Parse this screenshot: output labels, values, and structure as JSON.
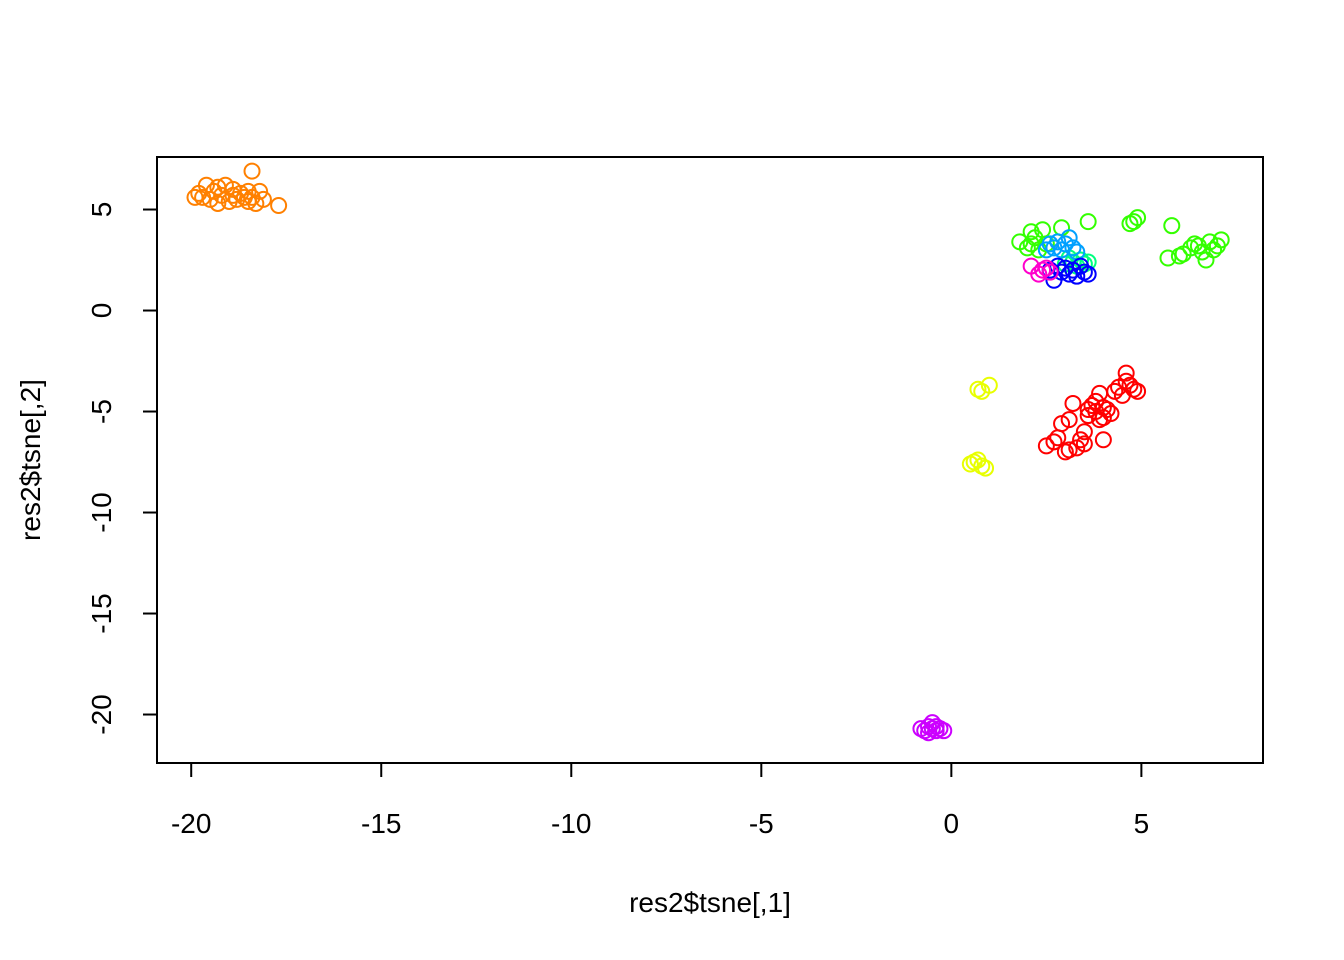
{
  "chart_data": {
    "type": "scatter",
    "title": "",
    "xlabel": "res2$tsne[,1]",
    "ylabel": "res2$tsne[,2]",
    "xlim": [
      -20.9,
      8.2
    ],
    "ylim": [
      -22.4,
      7.6
    ],
    "xticks": [
      -20,
      -15,
      -10,
      -5,
      0,
      5
    ],
    "yticks": [
      -20,
      -15,
      -10,
      -5,
      0,
      5
    ],
    "grid": false,
    "legend": "none",
    "marker": "open-circle",
    "series": [
      {
        "color": "#FF8000",
        "points": [
          [
            -19.9,
            5.6
          ],
          [
            -19.8,
            5.8
          ],
          [
            -19.7,
            5.6
          ],
          [
            -19.6,
            6.2
          ],
          [
            -19.5,
            5.5
          ],
          [
            -19.4,
            5.9
          ],
          [
            -19.3,
            6.1
          ],
          [
            -19.3,
            5.3
          ],
          [
            -19.2,
            5.7
          ],
          [
            -19.1,
            6.2
          ],
          [
            -19.0,
            5.4
          ],
          [
            -18.9,
            6.0
          ],
          [
            -18.9,
            5.7
          ],
          [
            -18.8,
            5.5
          ],
          [
            -18.7,
            5.8
          ],
          [
            -18.6,
            5.6
          ],
          [
            -18.5,
            5.9
          ],
          [
            -18.5,
            5.4
          ],
          [
            -18.4,
            6.9
          ],
          [
            -18.4,
            5.6
          ],
          [
            -18.3,
            5.3
          ],
          [
            -18.2,
            5.9
          ],
          [
            -18.1,
            5.5
          ],
          [
            -17.7,
            5.2
          ]
        ]
      },
      {
        "color": "#FF0000",
        "points": [
          [
            2.5,
            -6.7
          ],
          [
            2.7,
            -6.5
          ],
          [
            2.8,
            -6.3
          ],
          [
            2.9,
            -5.6
          ],
          [
            3.0,
            -7.0
          ],
          [
            3.1,
            -6.9
          ],
          [
            3.1,
            -5.4
          ],
          [
            3.2,
            -4.6
          ],
          [
            3.3,
            -6.8
          ],
          [
            3.4,
            -6.4
          ],
          [
            3.5,
            -6.6
          ],
          [
            3.5,
            -6.0
          ],
          [
            3.6,
            -5.2
          ],
          [
            3.6,
            -4.9
          ],
          [
            3.7,
            -4.7
          ],
          [
            3.8,
            -4.5
          ],
          [
            3.8,
            -5.0
          ],
          [
            3.9,
            -5.4
          ],
          [
            3.9,
            -4.1
          ],
          [
            4.0,
            -4.8
          ],
          [
            4.0,
            -5.3
          ],
          [
            4.0,
            -6.4
          ],
          [
            4.1,
            -4.9
          ],
          [
            4.2,
            -5.1
          ],
          [
            4.3,
            -4.0
          ],
          [
            4.4,
            -3.8
          ],
          [
            4.5,
            -4.2
          ],
          [
            4.6,
            -3.5
          ],
          [
            4.6,
            -3.1
          ],
          [
            4.7,
            -3.7
          ],
          [
            4.8,
            -3.9
          ],
          [
            4.9,
            -4.0
          ]
        ]
      },
      {
        "color": "#E8FF00",
        "points": [
          [
            0.7,
            -3.9
          ],
          [
            0.8,
            -4.0
          ],
          [
            1.0,
            -3.7
          ],
          [
            0.5,
            -7.6
          ],
          [
            0.6,
            -7.5
          ],
          [
            0.7,
            -7.4
          ],
          [
            0.8,
            -7.7
          ],
          [
            0.9,
            -7.8
          ]
        ]
      },
      {
        "color": "#33FF00",
        "points": [
          [
            1.8,
            3.4
          ],
          [
            2.0,
            3.1
          ],
          [
            2.1,
            3.9
          ],
          [
            2.1,
            3.3
          ],
          [
            2.2,
            3.6
          ],
          [
            2.3,
            3.0
          ],
          [
            2.4,
            4.0
          ],
          [
            2.5,
            3.3
          ],
          [
            2.9,
            4.1
          ],
          [
            3.6,
            4.4
          ],
          [
            4.7,
            4.3
          ],
          [
            4.8,
            4.4
          ],
          [
            4.9,
            4.6
          ],
          [
            5.7,
            2.6
          ],
          [
            5.8,
            4.2
          ],
          [
            6.0,
            2.7
          ],
          [
            6.1,
            2.8
          ],
          [
            6.3,
            3.1
          ],
          [
            6.4,
            3.3
          ],
          [
            6.5,
            3.2
          ],
          [
            6.6,
            2.9
          ],
          [
            6.7,
            2.5
          ],
          [
            6.8,
            3.4
          ],
          [
            6.9,
            3.0
          ],
          [
            7.0,
            3.2
          ],
          [
            7.1,
            3.5
          ]
        ]
      },
      {
        "color": "#00FF80",
        "points": [
          [
            3.0,
            2.3
          ],
          [
            3.1,
            2.6
          ],
          [
            3.2,
            2.4
          ],
          [
            3.3,
            2.2
          ],
          [
            3.4,
            2.5
          ],
          [
            3.5,
            2.3
          ],
          [
            3.6,
            2.4
          ]
        ]
      },
      {
        "color": "#00A0FF",
        "points": [
          [
            2.5,
            3.0
          ],
          [
            2.6,
            3.3
          ],
          [
            2.7,
            3.1
          ],
          [
            2.8,
            3.4
          ],
          [
            2.9,
            3.0
          ],
          [
            3.0,
            3.3
          ],
          [
            3.1,
            3.6
          ],
          [
            3.2,
            3.1
          ],
          [
            3.3,
            2.9
          ]
        ]
      },
      {
        "color": "#0000FF",
        "points": [
          [
            2.6,
            2.0
          ],
          [
            2.7,
            1.5
          ],
          [
            2.8,
            2.2
          ],
          [
            2.9,
            1.9
          ],
          [
            3.0,
            2.1
          ],
          [
            3.1,
            1.8
          ],
          [
            3.2,
            2.0
          ],
          [
            3.3,
            1.7
          ],
          [
            3.4,
            2.2
          ],
          [
            3.5,
            1.9
          ],
          [
            3.6,
            1.8
          ]
        ]
      },
      {
        "color": "#FF00CC",
        "points": [
          [
            2.1,
            2.2
          ],
          [
            2.3,
            1.8
          ],
          [
            2.4,
            2.0
          ],
          [
            2.5,
            2.1
          ],
          [
            2.6,
            1.9
          ]
        ]
      },
      {
        "color": "#CC00FF",
        "points": [
          [
            -0.8,
            -20.7
          ],
          [
            -0.7,
            -20.8
          ],
          [
            -0.6,
            -20.6
          ],
          [
            -0.6,
            -20.9
          ],
          [
            -0.5,
            -20.4
          ],
          [
            -0.5,
            -20.7
          ],
          [
            -0.4,
            -20.8
          ],
          [
            -0.4,
            -20.6
          ],
          [
            -0.3,
            -20.7
          ],
          [
            -0.2,
            -20.8
          ]
        ]
      }
    ]
  }
}
